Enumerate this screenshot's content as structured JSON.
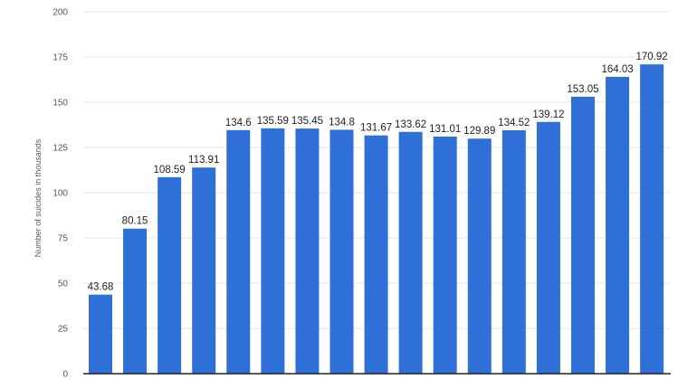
{
  "chart_data": {
    "type": "bar",
    "title": "",
    "xlabel": "",
    "ylabel": "Number of suicides in thousands",
    "ylim": [
      0,
      200
    ],
    "yticks": [
      0,
      25,
      50,
      75,
      100,
      125,
      150,
      175,
      200
    ],
    "grid": true,
    "color": "#2e6fd8",
    "values": [
      43.68,
      80.15,
      108.59,
      113.91,
      134.6,
      135.59,
      135.45,
      134.8,
      131.67,
      133.62,
      131.01,
      129.89,
      134.52,
      139.12,
      153.05,
      164.03,
      170.92
    ],
    "labels": [
      "43.68",
      "80.15",
      "108.59",
      "113.91",
      "134.6",
      "135.59",
      "135.45",
      "134.8",
      "131.67",
      "133.62",
      "131.01",
      "129.89",
      "134.52",
      "139.12",
      "153.05",
      "164.03",
      "170.92"
    ]
  }
}
